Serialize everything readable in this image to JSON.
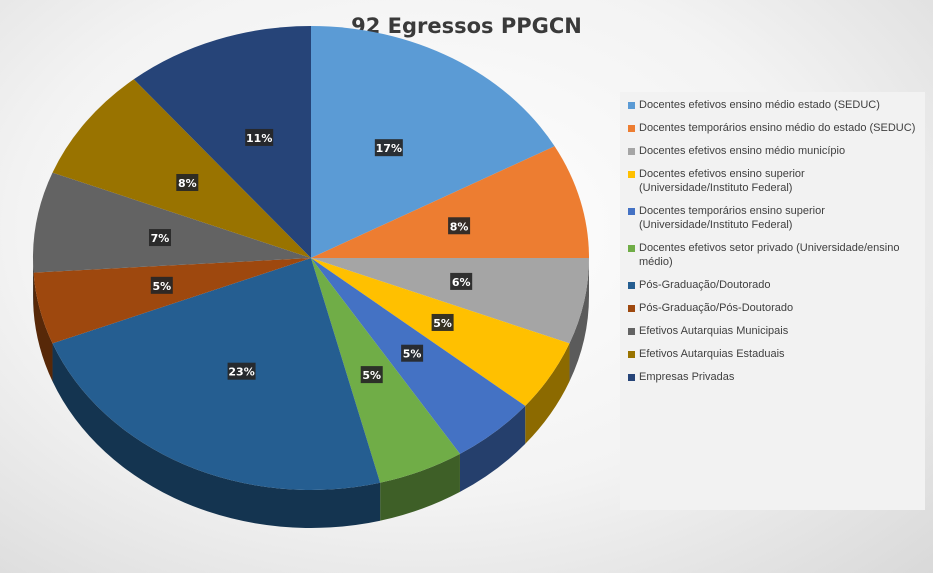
{
  "chart_data": {
    "type": "pie",
    "title": "92 Egressos PPGCN",
    "legend_position": "right",
    "style": "3d",
    "slices": [
      {
        "label": "Docentes efetivos ensino médio estado (SEDUC)",
        "value": 17,
        "display": "17%",
        "color": "#5b9bd5"
      },
      {
        "label": "Docentes temporários ensino médio do estado (SEDUC)",
        "value": 8,
        "display": "8%",
        "color": "#ed7d31"
      },
      {
        "label": "Docentes efetivos ensino médio município",
        "value": 6,
        "display": "6%",
        "color": "#a5a5a5"
      },
      {
        "label": "Docentes efetivos ensino superior (Universidade/Instituto Federal)",
        "value": 5,
        "display": "5%",
        "color": "#ffc000"
      },
      {
        "label": "Docentes temporários ensino superior (Universidade/Instituto Federal)",
        "value": 5,
        "display": "5%",
        "color": "#4472c4"
      },
      {
        "label": "Docentes efetivos setor privado (Universidade/ensino médio)",
        "value": 5,
        "display": "5%",
        "color": "#70ad47"
      },
      {
        "label": "Pós-Graduação/Doutorado",
        "value": 23,
        "display": "23%",
        "color": "#255e91"
      },
      {
        "label": "Pós-Graduação/Pós-Doutorado",
        "value": 5,
        "display": "5%",
        "color": "#9e480e"
      },
      {
        "label": "Efetivos Autarquias Municipais",
        "value": 7,
        "display": "7%",
        "color": "#636363"
      },
      {
        "label": "Efetivos Autarquias Estaduais",
        "value": 8,
        "display": "8%",
        "color": "#997300"
      },
      {
        "label": "Empresas Privadas",
        "value": 11,
        "display": "11%",
        "color": "#264478"
      }
    ]
  }
}
